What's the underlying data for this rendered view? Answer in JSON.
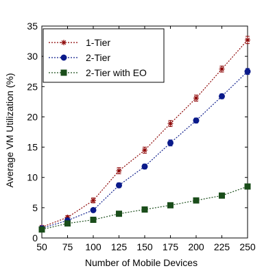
{
  "chart_data": {
    "type": "line",
    "xlabel": "Number of Mobile Devices",
    "ylabel": "Average VM Utilization (%)",
    "x": [
      50,
      75,
      100,
      125,
      150,
      175,
      200,
      225,
      250
    ],
    "xlim": [
      50,
      250
    ],
    "ylim": [
      0,
      35
    ],
    "xticks": [
      50,
      75,
      100,
      125,
      150,
      175,
      200,
      225,
      250
    ],
    "yticks": [
      0,
      5,
      10,
      15,
      20,
      25,
      30,
      35
    ],
    "grid": false,
    "legend_position": "top-left",
    "series": [
      {
        "name": "1-Tier",
        "color": "#8b0000",
        "marker": "asterisk",
        "values": [
          1.8,
          3.4,
          6.2,
          11.1,
          14.5,
          18.9,
          23.1,
          27.9,
          32.7
        ],
        "errors": [
          0.2,
          0.3,
          0.4,
          0.5,
          0.5,
          0.5,
          0.5,
          0.5,
          0.6
        ]
      },
      {
        "name": "2-Tier",
        "color": "#0a1a8a",
        "marker": "circle",
        "values": [
          1.6,
          2.9,
          4.6,
          8.7,
          11.8,
          15.7,
          19.4,
          23.4,
          27.5
        ],
        "errors": [
          0.2,
          0.2,
          0.3,
          0.4,
          0.4,
          0.5,
          0.4,
          0.4,
          0.5
        ]
      },
      {
        "name": "2-Tier with EO",
        "color": "#1a4d1a",
        "marker": "square",
        "values": [
          1.4,
          2.4,
          3.0,
          4.0,
          4.7,
          5.4,
          6.2,
          7.0,
          8.5
        ],
        "errors": [
          0.1,
          0.1,
          0.1,
          0.1,
          0.1,
          0.1,
          0.1,
          0.1,
          0.2
        ]
      }
    ]
  }
}
